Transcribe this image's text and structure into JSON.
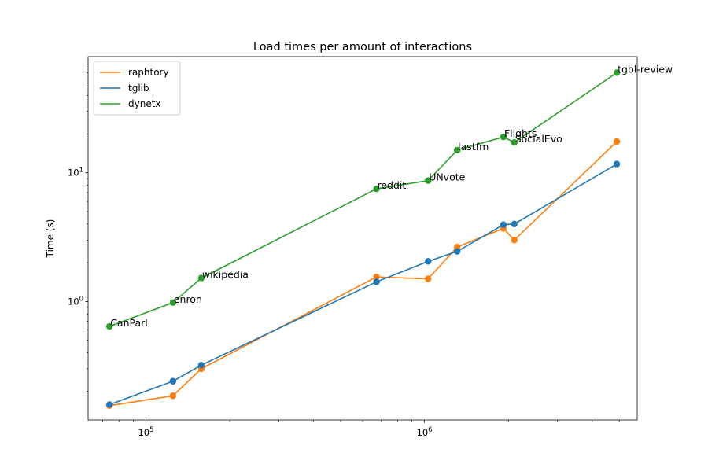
{
  "chart_data": {
    "type": "line",
    "title": "Load times per amount of interactions",
    "xlabel": "",
    "ylabel": "Time (s)",
    "xscale": "log",
    "yscale": "log",
    "xlim": [
      62000,
      5800000
    ],
    "ylim": [
      0.12,
      80
    ],
    "x_ticks": [
      {
        "value": 100000,
        "label": "10^5"
      },
      {
        "value": 1000000,
        "label": "10^6"
      }
    ],
    "y_ticks": [
      {
        "value": 1,
        "label": "10^0"
      },
      {
        "value": 10,
        "label": "10^1"
      }
    ],
    "legend_position": "top-left",
    "grid": false,
    "series": [
      {
        "name": "raphtory",
        "color": "#ff7f0e",
        "points": [
          {
            "x": 74000,
            "y": 0.155
          },
          {
            "x": 125000,
            "y": 0.185
          },
          {
            "x": 158000,
            "y": 0.3
          },
          {
            "x": 672000,
            "y": 1.55
          },
          {
            "x": 1030000,
            "y": 1.5
          },
          {
            "x": 1310000,
            "y": 2.65
          },
          {
            "x": 1920000,
            "y": 3.7
          },
          {
            "x": 2100000,
            "y": 3.0
          },
          {
            "x": 4900000,
            "y": 17.5
          }
        ]
      },
      {
        "name": "tglib",
        "color": "#1f77b4",
        "points": [
          {
            "x": 74000,
            "y": 0.158
          },
          {
            "x": 125000,
            "y": 0.24
          },
          {
            "x": 158000,
            "y": 0.32
          },
          {
            "x": 672000,
            "y": 1.42
          },
          {
            "x": 1030000,
            "y": 2.05
          },
          {
            "x": 1310000,
            "y": 2.45
          },
          {
            "x": 1920000,
            "y": 3.95
          },
          {
            "x": 2100000,
            "y": 4.0
          },
          {
            "x": 4900000,
            "y": 11.7
          }
        ]
      },
      {
        "name": "dynetx",
        "color": "#2ca02c",
        "points": [
          {
            "x": 74000,
            "y": 0.64
          },
          {
            "x": 125000,
            "y": 0.98
          },
          {
            "x": 158000,
            "y": 1.52
          },
          {
            "x": 672000,
            "y": 7.5
          },
          {
            "x": 1030000,
            "y": 8.7
          },
          {
            "x": 1310000,
            "y": 15.0
          },
          {
            "x": 1920000,
            "y": 19.0
          },
          {
            "x": 2100000,
            "y": 17.2
          },
          {
            "x": 4900000,
            "y": 60.0
          }
        ]
      }
    ],
    "annotations": [
      {
        "text": "CanParl",
        "x": 74000,
        "y": 0.64
      },
      {
        "text": "enron",
        "x": 125000,
        "y": 0.98
      },
      {
        "text": "wikipedia",
        "x": 158000,
        "y": 1.52
      },
      {
        "text": "reddit",
        "x": 672000,
        "y": 7.5
      },
      {
        "text": "UNvote",
        "x": 1030000,
        "y": 8.7
      },
      {
        "text": "lastfm",
        "x": 1310000,
        "y": 15.0
      },
      {
        "text": "Flights",
        "x": 1920000,
        "y": 19.0
      },
      {
        "text": "SocialEvo",
        "x": 2100000,
        "y": 17.2
      },
      {
        "text": "tgbl-review",
        "x": 4900000,
        "y": 60.0
      }
    ]
  }
}
